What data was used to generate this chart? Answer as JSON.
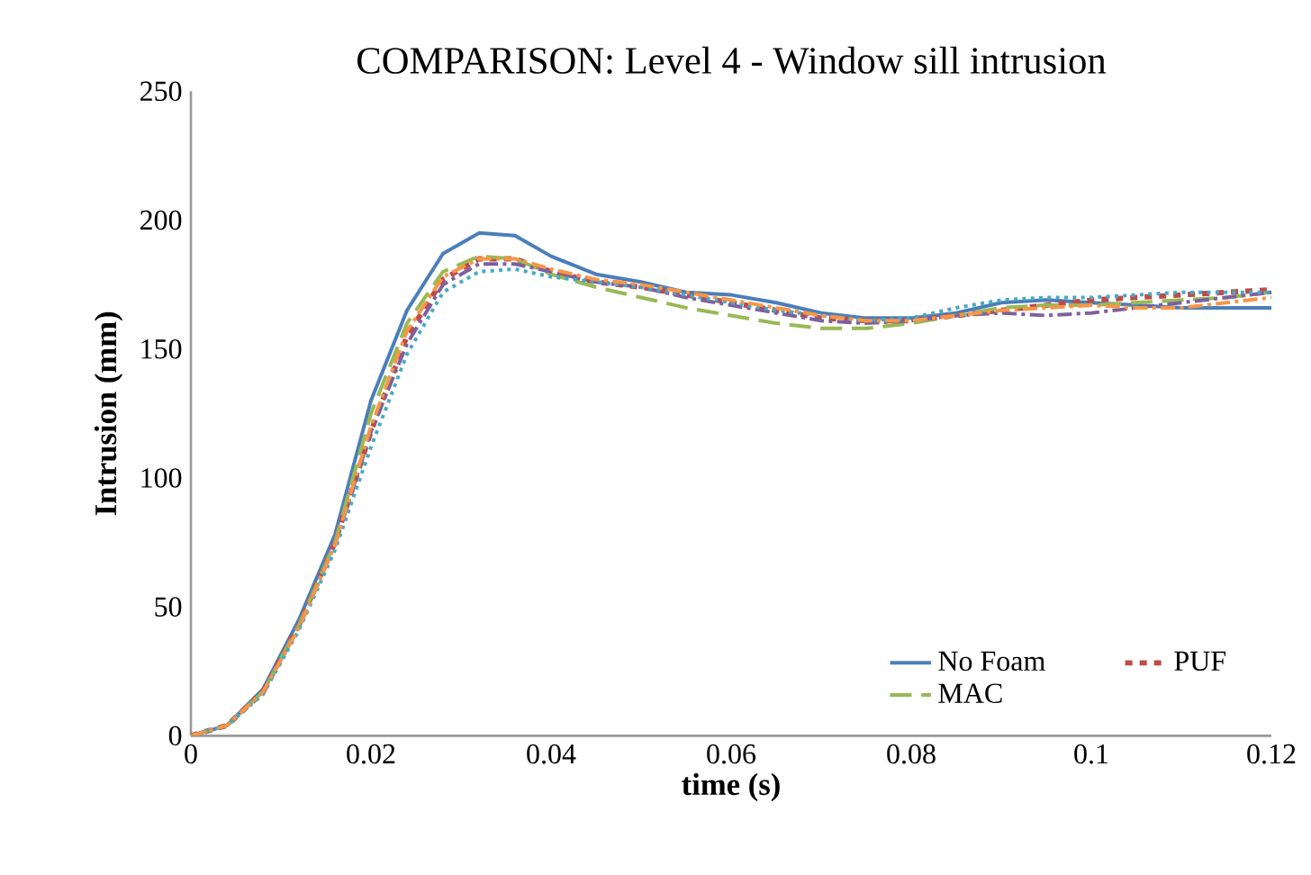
{
  "chart_data": {
    "type": "line",
    "title": "COMPARISON: Level 4 - Window sill intrusion",
    "xlabel": "time (s)",
    "ylabel": "Intrusion (mm)",
    "x": [
      0,
      0.004,
      0.008,
      0.012,
      0.016,
      0.02,
      0.024,
      0.028,
      0.032,
      0.036,
      0.04,
      0.045,
      0.05,
      0.055,
      0.06,
      0.065,
      0.07,
      0.075,
      0.08,
      0.085,
      0.09,
      0.095,
      0.1,
      0.105,
      0.11,
      0.115,
      0.12
    ],
    "series": [
      {
        "name": "No Foam",
        "color": "#4a7ebb",
        "line_style": "solid",
        "values": [
          0,
          4,
          18,
          45,
          78,
          130,
          165,
          187,
          195,
          194,
          186,
          179,
          176,
          172,
          171,
          168,
          164,
          162,
          162,
          164,
          168,
          169,
          168,
          167,
          166,
          166,
          166
        ]
      },
      {
        "name": "PUF",
        "color": "#be4b48",
        "line_style": "dashed",
        "values": [
          0,
          4,
          17,
          43,
          75,
          118,
          155,
          177,
          185,
          185,
          180,
          176,
          174,
          171,
          168,
          165,
          162,
          161,
          161,
          163,
          165,
          167,
          169,
          170,
          171,
          172,
          173
        ]
      },
      {
        "name": "MAC",
        "color": "#98b954",
        "line_style": "longdashed",
        "values": [
          0,
          4,
          17,
          43,
          75,
          125,
          160,
          180,
          186,
          185,
          179,
          174,
          170,
          166,
          163,
          160,
          158,
          158,
          160,
          163,
          166,
          167,
          167,
          168,
          169,
          170,
          172
        ]
      },
      {
        "color": "#7d60a0",
        "line_style": "dashdotted",
        "values": [
          0,
          4,
          17,
          42,
          74,
          118,
          152,
          175,
          183,
          183,
          180,
          176,
          174,
          170,
          167,
          164,
          161,
          160,
          161,
          163,
          164,
          163,
          164,
          166,
          168,
          170,
          172
        ]
      },
      {
        "color": "#46aac5",
        "line_style": "dotted",
        "values": [
          0,
          4,
          16,
          41,
          72,
          112,
          148,
          172,
          180,
          181,
          178,
          176,
          174,
          171,
          168,
          165,
          163,
          161,
          162,
          166,
          169,
          170,
          170,
          171,
          172,
          172,
          172
        ]
      },
      {
        "color": "#f79646",
        "line_style": "dashdotted",
        "values": [
          0,
          4,
          17,
          42,
          74,
          120,
          157,
          178,
          185,
          185,
          181,
          177,
          175,
          172,
          169,
          166,
          163,
          161,
          161,
          163,
          165,
          166,
          167,
          166,
          166,
          168,
          170
        ]
      }
    ],
    "xlim": [
      0,
      0.12
    ],
    "xticks": [
      0,
      0.02,
      0.04,
      0.06,
      0.08,
      0.1,
      0.12
    ],
    "ylim": [
      0,
      250
    ],
    "yticks": [
      0,
      50,
      100,
      150,
      200,
      250
    ],
    "grid": false,
    "legend": "bottom right",
    "marker": "none"
  }
}
